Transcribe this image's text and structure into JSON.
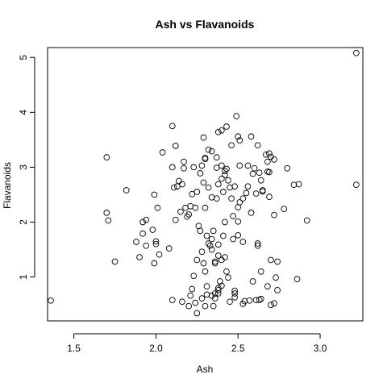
{
  "chart_data": {
    "type": "scatter",
    "title": "Ash vs Flavanoids",
    "xlabel": "Ash",
    "ylabel": "Flavanoids",
    "xlim": [
      1.34,
      3.26
    ],
    "ylim": [
      0.2,
      5.18
    ],
    "xticks": [
      1.5,
      2.0,
      2.5,
      3.0
    ],
    "xtick_labels": [
      "1.5",
      "2.0",
      "2.5",
      "3.0"
    ],
    "yticks": [
      1,
      2,
      3,
      4,
      5
    ],
    "ytick_labels": [
      "1",
      "2",
      "3",
      "4",
      "5"
    ],
    "grid": false,
    "points": [
      [
        1.36,
        0.57
      ],
      [
        1.7,
        3.18
      ],
      [
        1.7,
        2.17
      ],
      [
        1.71,
        2.03
      ],
      [
        1.75,
        1.28
      ],
      [
        1.82,
        2.58
      ],
      [
        1.88,
        1.64
      ],
      [
        1.9,
        1.36
      ],
      [
        1.92,
        2.0
      ],
      [
        1.92,
        1.79
      ],
      [
        1.94,
        2.04
      ],
      [
        1.94,
        1.57
      ],
      [
        1.98,
        1.86
      ],
      [
        1.99,
        1.25
      ],
      [
        1.99,
        2.5
      ],
      [
        2.0,
        1.6
      ],
      [
        2.0,
        1.65
      ],
      [
        2.01,
        2.26
      ],
      [
        2.02,
        1.41
      ],
      [
        2.04,
        3.27
      ],
      [
        2.08,
        1.52
      ],
      [
        2.1,
        0.58
      ],
      [
        2.1,
        3.75
      ],
      [
        2.1,
        3.0
      ],
      [
        2.11,
        2.63
      ],
      [
        2.12,
        3.39
      ],
      [
        2.12,
        2.04
      ],
      [
        2.13,
        2.65
      ],
      [
        2.14,
        2.75
      ],
      [
        2.15,
        2.19
      ],
      [
        2.16,
        2.69
      ],
      [
        2.16,
        0.55
      ],
      [
        2.17,
        3.1
      ],
      [
        2.17,
        2.98
      ],
      [
        2.18,
        2.26
      ],
      [
        2.19,
        2.1
      ],
      [
        2.2,
        0.47
      ],
      [
        2.2,
        2.14
      ],
      [
        2.21,
        0.66
      ],
      [
        2.21,
        2.29
      ],
      [
        2.22,
        0.78
      ],
      [
        2.22,
        2.51
      ],
      [
        2.23,
        1.02
      ],
      [
        2.23,
        3.0
      ],
      [
        2.24,
        0.53
      ],
      [
        2.24,
        2.26
      ],
      [
        2.25,
        0.34
      ],
      [
        2.25,
        1.31
      ],
      [
        2.25,
        2.55
      ],
      [
        2.26,
        1.93
      ],
      [
        2.27,
        1.84
      ],
      [
        2.27,
        2.89
      ],
      [
        2.28,
        1.46
      ],
      [
        2.28,
        0.61
      ],
      [
        2.28,
        3.03
      ],
      [
        2.29,
        1.25
      ],
      [
        2.29,
        2.72
      ],
      [
        2.29,
        3.54
      ],
      [
        2.3,
        1.1
      ],
      [
        2.3,
        0.47
      ],
      [
        2.3,
        3.15
      ],
      [
        2.3,
        3.17
      ],
      [
        2.3,
        2.26
      ],
      [
        2.31,
        1.75
      ],
      [
        2.31,
        0.68
      ],
      [
        2.31,
        0.83
      ],
      [
        2.32,
        1.61
      ],
      [
        2.32,
        2.63
      ],
      [
        2.32,
        3.32
      ],
      [
        2.33,
        1.57
      ],
      [
        2.34,
        2.45
      ],
      [
        2.34,
        3.29
      ],
      [
        2.34,
        1.69
      ],
      [
        2.34,
        0.66
      ],
      [
        2.34,
        1.5
      ],
      [
        2.35,
        1.84
      ],
      [
        2.35,
        0.47
      ],
      [
        2.36,
        0.61
      ],
      [
        2.36,
        1.25
      ],
      [
        2.36,
        0.7
      ],
      [
        2.36,
        1.28
      ],
      [
        2.37,
        2.99
      ],
      [
        2.37,
        3.18
      ],
      [
        2.37,
        2.43
      ],
      [
        2.38,
        0.76
      ],
      [
        2.38,
        0.8
      ],
      [
        2.38,
        1.39
      ],
      [
        2.38,
        1.59
      ],
      [
        2.38,
        0.7
      ],
      [
        2.38,
        2.69
      ],
      [
        2.38,
        3.64
      ],
      [
        2.39,
        0.92
      ],
      [
        2.4,
        2.79
      ],
      [
        2.4,
        3.03
      ],
      [
        2.4,
        1.31
      ],
      [
        2.4,
        0.84
      ],
      [
        2.4,
        3.67
      ],
      [
        2.41,
        1.75
      ],
      [
        2.41,
        2.55
      ],
      [
        2.42,
        2.93
      ],
      [
        2.42,
        2.86
      ],
      [
        2.42,
        2.0
      ],
      [
        2.42,
        1.36
      ],
      [
        2.43,
        1.1
      ],
      [
        2.43,
        2.97
      ],
      [
        2.43,
        3.74
      ],
      [
        2.44,
        2.76
      ],
      [
        2.44,
        0.99
      ],
      [
        2.45,
        2.63
      ],
      [
        2.45,
        0.55
      ],
      [
        2.46,
        2.43
      ],
      [
        2.46,
        3.4
      ],
      [
        2.47,
        2.11
      ],
      [
        2.47,
        1.69
      ],
      [
        2.48,
        2.65
      ],
      [
        2.48,
        0.63
      ],
      [
        2.48,
        0.7
      ],
      [
        2.48,
        0.75
      ],
      [
        2.49,
        3.93
      ],
      [
        2.5,
        2.01
      ],
      [
        2.5,
        1.76
      ],
      [
        2.5,
        2.27
      ],
      [
        2.5,
        3.56
      ],
      [
        2.51,
        3.49
      ],
      [
        2.51,
        2.36
      ],
      [
        2.51,
        3.03
      ],
      [
        2.53,
        2.43
      ],
      [
        2.53,
        0.51
      ],
      [
        2.53,
        1.64
      ],
      [
        2.54,
        0.56
      ],
      [
        2.55,
        2.53
      ],
      [
        2.56,
        3.03
      ],
      [
        2.56,
        2.65
      ],
      [
        2.57,
        0.57
      ],
      [
        2.58,
        2.17
      ],
      [
        2.58,
        3.56
      ],
      [
        2.59,
        2.88
      ],
      [
        2.59,
        0.92
      ],
      [
        2.6,
        2.98
      ],
      [
        2.61,
        2.52
      ],
      [
        2.61,
        0.58
      ],
      [
        2.62,
        1.57
      ],
      [
        2.62,
        1.61
      ],
      [
        2.62,
        3.4
      ],
      [
        2.63,
        2.9
      ],
      [
        2.63,
        0.58
      ],
      [
        2.64,
        2.76
      ],
      [
        2.64,
        0.6
      ],
      [
        2.64,
        1.1
      ],
      [
        2.65,
        2.56
      ],
      [
        2.65,
        2.58
      ],
      [
        2.67,
        3.23
      ],
      [
        2.68,
        0.83
      ],
      [
        2.68,
        3.1
      ],
      [
        2.68,
        2.92
      ],
      [
        2.69,
        3.25
      ],
      [
        2.69,
        2.91
      ],
      [
        2.69,
        2.46
      ],
      [
        2.7,
        0.49
      ],
      [
        2.7,
        1.31
      ],
      [
        2.7,
        3.19
      ],
      [
        2.72,
        0.52
      ],
      [
        2.72,
        2.13
      ],
      [
        2.72,
        3.14
      ],
      [
        2.73,
        0.99
      ],
      [
        2.74,
        0.76
      ],
      [
        2.74,
        1.28
      ],
      [
        2.78,
        2.24
      ],
      [
        2.8,
        2.98
      ],
      [
        2.84,
        2.68
      ],
      [
        2.86,
        0.96
      ],
      [
        2.87,
        2.69
      ],
      [
        2.92,
        2.03
      ],
      [
        3.22,
        5.08
      ],
      [
        3.22,
        2.68
      ]
    ]
  }
}
